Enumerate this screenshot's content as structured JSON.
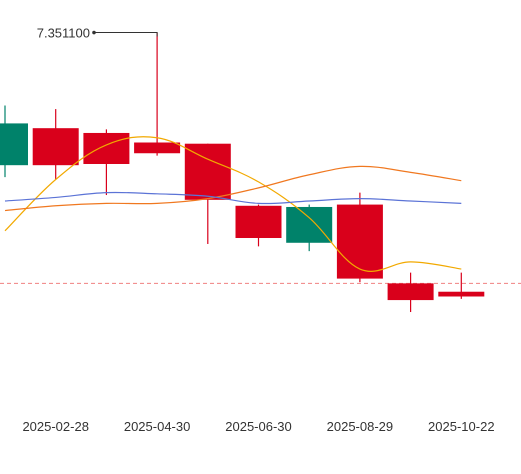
{
  "chart_data": {
    "type": "candlestick",
    "x_ticks": [
      "2025-02-28",
      "2025-04-30",
      "2025-06-30",
      "2025-08-29",
      "2025-10-22"
    ],
    "candles": [
      {
        "open": 7.275,
        "close": 7.24,
        "high": 7.29,
        "low": 7.23
      },
      {
        "open": 7.24,
        "close": 7.271,
        "high": 7.287,
        "low": 7.228
      },
      {
        "open": 7.241,
        "close": 7.267,
        "high": 7.27,
        "low": 7.215
      },
      {
        "open": 7.25,
        "close": 7.259,
        "high": 7.351,
        "low": 7.248
      },
      {
        "open": 7.211,
        "close": 7.258,
        "high": 7.258,
        "low": 7.174
      },
      {
        "open": 7.179,
        "close": 7.206,
        "high": 7.207,
        "low": 7.172
      },
      {
        "open": 7.205,
        "close": 7.175,
        "high": 7.207,
        "low": 7.168
      },
      {
        "open": 7.145,
        "close": 7.207,
        "high": 7.217,
        "low": 7.142
      },
      {
        "open": 7.127,
        "close": 7.141,
        "high": 7.15,
        "low": 7.117
      },
      {
        "open": 7.13,
        "close": 7.134,
        "high": 7.15,
        "low": 7.128
      }
    ],
    "moving_averages": [
      {
        "color": "#f2a900",
        "values": [
          7.185,
          7.228,
          7.257,
          7.263,
          7.245,
          7.226,
          7.196,
          7.153,
          7.159,
          7.153
        ]
      },
      {
        "color": "#f07820",
        "values": [
          7.202,
          7.206,
          7.208,
          7.208,
          7.212,
          7.221,
          7.232,
          7.239,
          7.234,
          7.227
        ]
      },
      {
        "color": "#5b73d6",
        "values": [
          7.21,
          7.213,
          7.217,
          7.216,
          7.214,
          7.208,
          7.21,
          7.212,
          7.21,
          7.208
        ]
      }
    ],
    "reference_line": {
      "value": 7.141,
      "color": "#f08080"
    },
    "annotation": {
      "label": "7.351100",
      "value": 7.3511
    },
    "up_color": "#d9001b",
    "down_color": "#00826a",
    "y_range": [
      7.05,
      7.37
    ]
  }
}
